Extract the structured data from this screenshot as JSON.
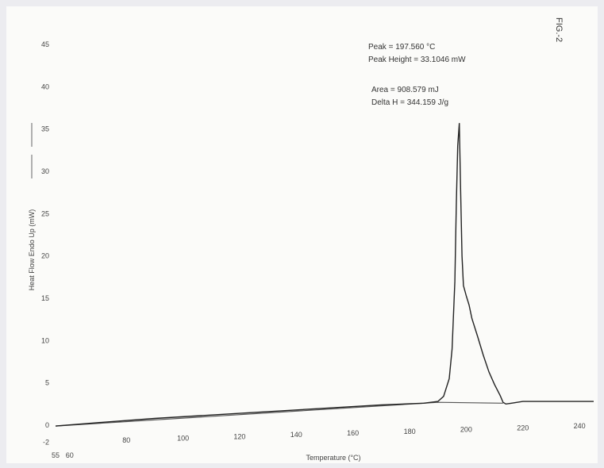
{
  "chart_data": {
    "type": "line",
    "title": "",
    "figure_label": "FIG.-2",
    "xlabel": "Temperature (°C)",
    "ylabel": "Heat Flow Endo Up (mW)",
    "xlim": [
      55,
      245
    ],
    "ylim": [
      -2,
      47
    ],
    "x_ticks": [
      {
        "value": 55,
        "label": "55"
      },
      {
        "value": 60,
        "label": "60"
      },
      {
        "value": 80,
        "label": "80"
      },
      {
        "value": 100,
        "label": "100"
      },
      {
        "value": 120,
        "label": "120"
      },
      {
        "value": 140,
        "label": "140"
      },
      {
        "value": 160,
        "label": "160"
      },
      {
        "value": 180,
        "label": "180"
      },
      {
        "value": 200,
        "label": "200"
      },
      {
        "value": 220,
        "label": "220"
      },
      {
        "value": 240,
        "label": "240"
      }
    ],
    "y_ticks": [
      {
        "value": 45,
        "label": "45"
      },
      {
        "value": 40,
        "label": "40"
      },
      {
        "value": 35,
        "label": "35"
      },
      {
        "value": 30,
        "label": "30"
      },
      {
        "value": 25,
        "label": "25"
      },
      {
        "value": 20,
        "label": "20"
      },
      {
        "value": 15,
        "label": "15"
      },
      {
        "value": 10,
        "label": "10"
      },
      {
        "value": 5,
        "label": "5"
      },
      {
        "value": 0,
        "label": "0"
      },
      {
        "value": -2,
        "label": "-2"
      }
    ],
    "grid": false,
    "series": [
      {
        "x": [
          55,
          70,
          90,
          110,
          130,
          150,
          170,
          185,
          190,
          192,
          194,
          195,
          196,
          196.5,
          197,
          197.56,
          198,
          198.5,
          199,
          200,
          201,
          202,
          204,
          206,
          208,
          210,
          212,
          213,
          214,
          216,
          220,
          230,
          240,
          245
        ],
        "y": [
          -0.1,
          0.3,
          0.8,
          1.2,
          1.6,
          2.0,
          2.4,
          2.6,
          2.8,
          3.4,
          5.5,
          9.0,
          17.0,
          26.0,
          33.0,
          35.7,
          28.0,
          20.0,
          16.5,
          15.3,
          14.2,
          12.6,
          10.5,
          8.3,
          6.3,
          4.8,
          3.5,
          2.7,
          2.5,
          2.6,
          2.8,
          2.8,
          2.8,
          2.8
        ]
      }
    ],
    "baseline": {
      "x": [
        55,
        190,
        213
      ],
      "y": [
        -0.1,
        2.7,
        2.6
      ]
    },
    "annotations": {
      "peak": "Peak = 197.560 °C",
      "peak_height": "Peak Height = 33.1046 mW",
      "area": "Area = 908.579 mJ",
      "delta_h": "Delta H = 344.159 J/g"
    }
  }
}
